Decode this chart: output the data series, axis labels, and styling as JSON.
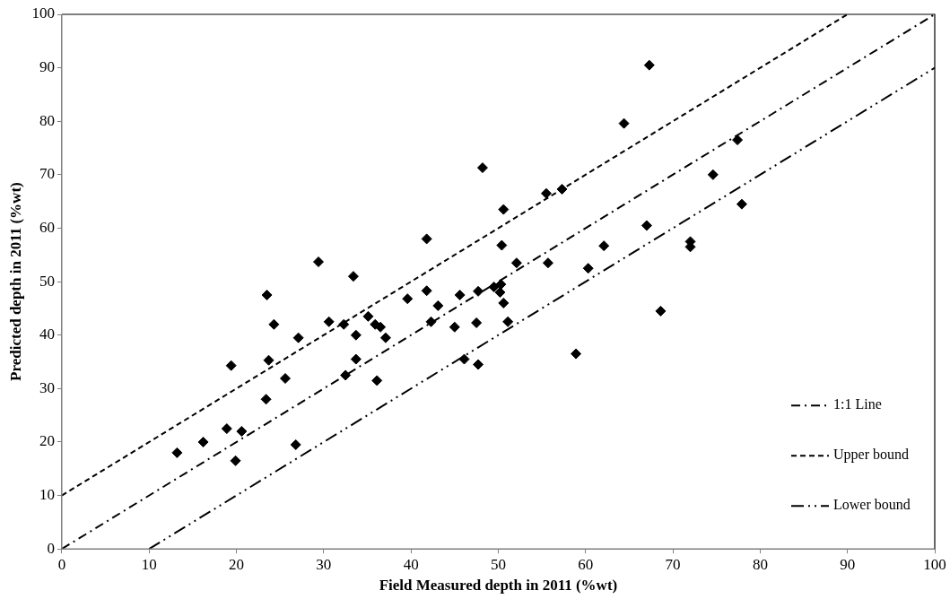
{
  "chart_data": {
    "type": "scatter",
    "xlabel": "Field Measured depth in 2011 (%wt)",
    "ylabel": "Predicted depth in 2011 (%wt)",
    "xlim": [
      0,
      100
    ],
    "ylim": [
      0,
      100
    ],
    "xticks": [
      0,
      10,
      20,
      30,
      40,
      50,
      60,
      70,
      80,
      90,
      100
    ],
    "yticks": [
      0,
      10,
      20,
      30,
      40,
      50,
      60,
      70,
      80,
      90,
      100
    ],
    "grid": false,
    "legend": "bottom right",
    "marker": "diamond",
    "series": [
      {
        "color": "#000000",
        "x": [
          13.2,
          16.2,
          18.9,
          19.4,
          19.9,
          20.6,
          23.4,
          23.5,
          23.7,
          24.3,
          25.6,
          26.8,
          27.1,
          29.4,
          30.6,
          32.3,
          32.5,
          33.4,
          33.7,
          33.7,
          35.1,
          35.9,
          36.1,
          36.5,
          37.1,
          39.6,
          41.8,
          41.8,
          42.3,
          43.1,
          45,
          45.6,
          46.1,
          47.5,
          47.7,
          47.7,
          48.2,
          49.5,
          50.2,
          50.3,
          50.4,
          50.6,
          50.6,
          51.1,
          52.1,
          55.5,
          55.7,
          57.3,
          58.9,
          60.3,
          62.1,
          64.4,
          67,
          67.3,
          68.6,
          72,
          72,
          74.6,
          77.4,
          77.9
        ],
        "values": [
          18,
          20,
          22.5,
          34.3,
          16.5,
          22,
          28,
          47.5,
          35.3,
          42,
          31.9,
          19.5,
          39.5,
          53.7,
          42.5,
          42,
          32.5,
          51,
          35.5,
          40,
          43.5,
          42,
          31.5,
          41.5,
          39.5,
          46.8,
          58,
          48.3,
          42.5,
          45.5,
          41.5,
          47.5,
          35.5,
          42.3,
          34.5,
          48.2,
          71.3,
          49,
          48,
          49.5,
          56.8,
          46,
          63.5,
          42.5,
          53.5,
          66.5,
          53.5,
          67.3,
          36.5,
          52.5,
          56.7,
          79.6,
          60.5,
          90.5,
          44.5,
          57.5,
          56.5,
          70,
          76.5,
          64.5
        ]
      },
      {
        "type": "line",
        "name": "1:1 Line",
        "color": "#000000",
        "line_style": "dashdot",
        "marker": "none",
        "x": [
          0,
          100
        ],
        "values": [
          0,
          100
        ]
      },
      {
        "type": "line",
        "name": "Upper bound",
        "color": "#000000",
        "line_style": "dashed",
        "marker": "none",
        "x": [
          0,
          90
        ],
        "values": [
          10,
          100
        ]
      },
      {
        "type": "line",
        "name": "Lower bound",
        "color": "#000000",
        "line_style": "dashdotdot",
        "marker": "none",
        "x": [
          10,
          100
        ],
        "values": [
          0,
          90
        ]
      }
    ]
  }
}
